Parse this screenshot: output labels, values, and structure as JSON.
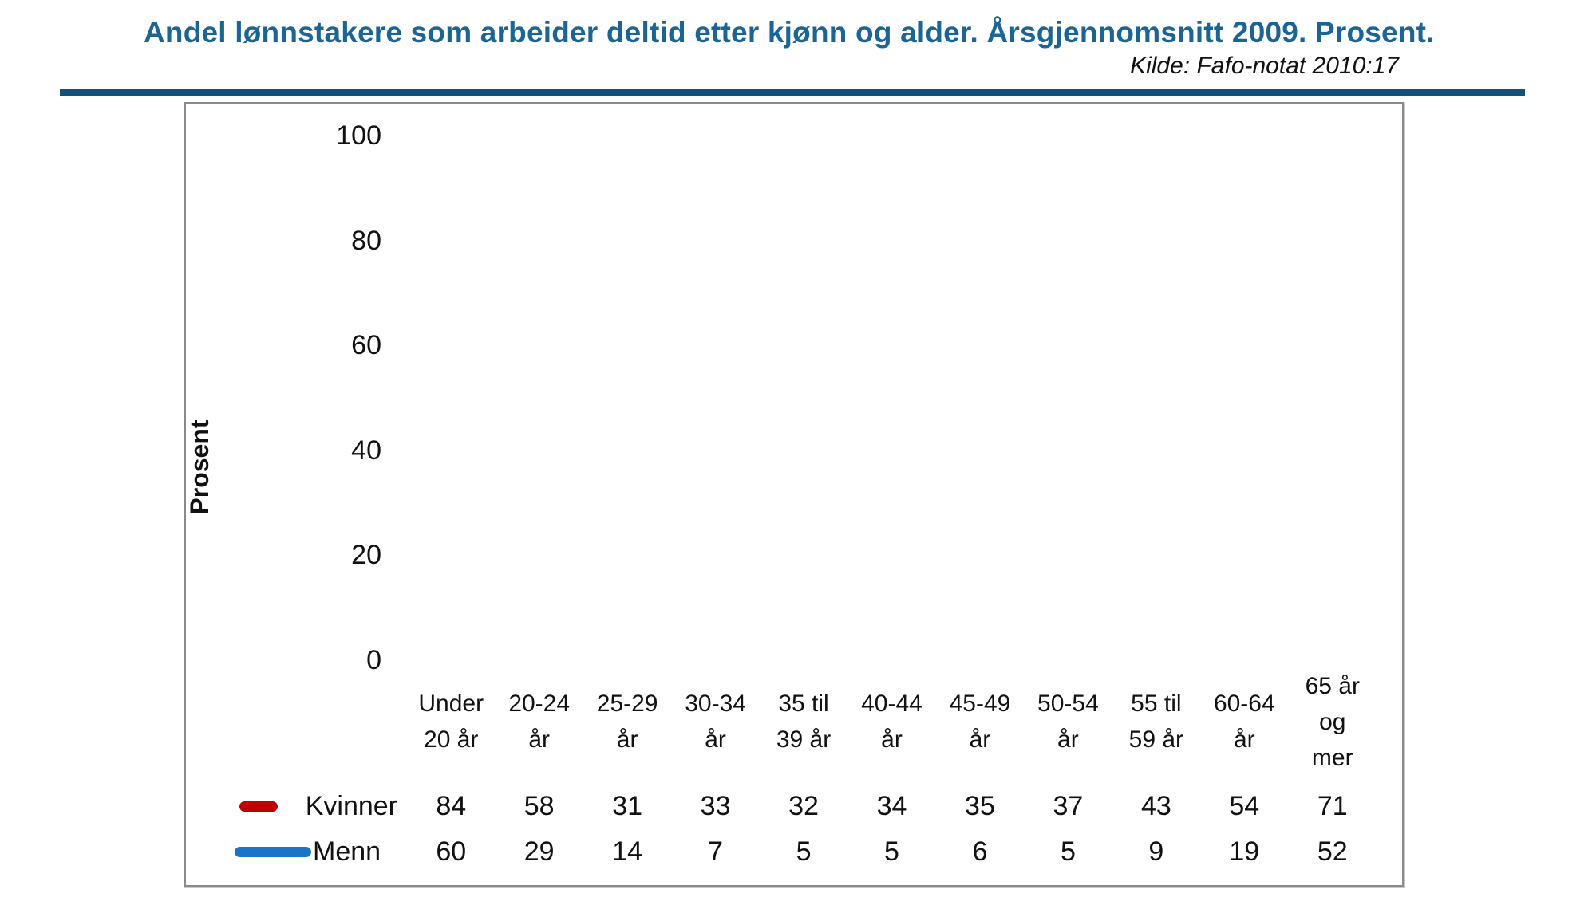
{
  "header": {
    "title": "Andel lønnstakere som arbeider deltid etter kjønn og alder. Årsgjennomsnitt 2009. Prosent.",
    "source": "Kilde: Fafo-notat 2010:17"
  },
  "colors": {
    "title_text": "#1B6596",
    "divider": "#14527C",
    "kvinner_line": "#C00000",
    "menn_line": "#1B74C5",
    "gridline": "#A8A8A8",
    "axis": "#5A5A5A",
    "table_border": "#707070"
  },
  "chart_data": {
    "type": "line",
    "title": "Andel lønnstakere som arbeider deltid etter kjønn og alder. Årsgjennomsnitt 2009. Prosent.",
    "source": "Kilde: Fafo-notat 2010:17",
    "xlabel": "",
    "ylabel": "Prosent",
    "ylim": [
      0,
      100
    ],
    "yticks": [
      0,
      20,
      40,
      60,
      80,
      100
    ],
    "grid": "horizontal",
    "legend_position": "table-rows-left",
    "categories": [
      "Under 20 år",
      "20-24 år",
      "25-29 år",
      "30-34 år",
      "35 til 39 år",
      "40-44 år",
      "45-49 år",
      "50-54 år",
      "55 til 59 år",
      "60-64 år",
      "65 år og mer"
    ],
    "categories_wrapped": [
      "Under\n20 år",
      "20-24\når",
      "25-29\når",
      "30-34\når",
      "35 til\n39 år",
      "40-44\når",
      "45-49\når",
      "50-54\når",
      "55 til\n59 år",
      "60-64\når",
      "65 år\nog\nmer"
    ],
    "series": [
      {
        "name": "Kvinner",
        "color": "#C00000",
        "line_style": "dashed",
        "values": [
          84,
          58,
          31,
          33,
          32,
          34,
          35,
          37,
          43,
          54,
          71
        ]
      },
      {
        "name": "Menn",
        "color": "#1B74C5",
        "line_style": "solid",
        "values": [
          60,
          29,
          14,
          7,
          5,
          5,
          6,
          5,
          9,
          19,
          52
        ]
      }
    ]
  }
}
